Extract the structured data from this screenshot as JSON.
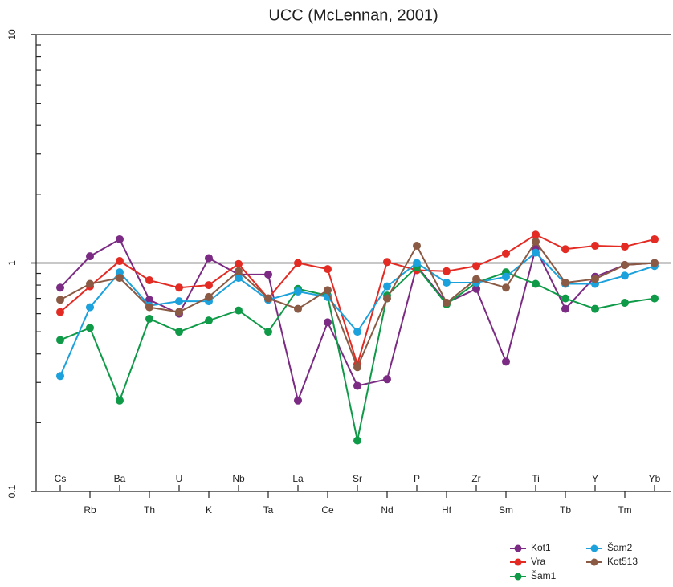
{
  "chart_data": {
    "type": "line",
    "title": "UCC (McLennan, 2001)",
    "categories": [
      "Cs",
      "Rb",
      "Ba",
      "Th",
      "U",
      "K",
      "Nb",
      "Ta",
      "La",
      "Ce",
      "Sr",
      "Nd",
      "P",
      "Hf",
      "Zr",
      "Sm",
      "Ti",
      "Tb",
      "Y",
      "Tm",
      "Yb"
    ],
    "log_scale": true,
    "ylim": [
      0.1,
      10
    ],
    "yticks": [
      0.1,
      1,
      10
    ],
    "yminorticks": [
      0.2,
      0.3,
      0.4,
      0.5,
      0.6,
      0.7,
      0.8,
      0.9,
      2,
      3,
      4,
      5,
      6,
      7,
      8,
      9
    ],
    "reference_line": 1,
    "legend": "bottom-right",
    "series": [
      {
        "name": "Kot1",
        "color": "#7b2b83",
        "values": [
          0.78,
          1.07,
          1.27,
          0.69,
          0.6,
          1.05,
          0.89,
          0.89,
          0.25,
          0.55,
          0.29,
          0.31,
          0.97,
          0.67,
          0.77,
          0.37,
          1.16,
          0.63,
          0.87,
          0.98,
          1.0
        ]
      },
      {
        "name": "Vra",
        "color": "#e32b24",
        "values": [
          0.61,
          0.79,
          1.02,
          0.84,
          0.78,
          0.8,
          0.99,
          0.7,
          1.0,
          0.94,
          0.36,
          1.01,
          0.93,
          0.92,
          0.97,
          1.1,
          1.33,
          1.15,
          1.19,
          1.18,
          1.27
        ]
      },
      {
        "name": "Šam1",
        "color": "#0f9a48",
        "values": [
          0.46,
          0.52,
          0.25,
          0.57,
          0.5,
          0.56,
          0.62,
          0.5,
          0.77,
          0.72,
          0.167,
          0.72,
          0.96,
          0.66,
          0.82,
          0.91,
          0.81,
          0.7,
          0.63,
          0.67,
          0.7
        ]
      },
      {
        "name": "Šam2",
        "color": "#1ba1dc",
        "values": [
          0.32,
          0.64,
          0.91,
          0.65,
          0.68,
          0.68,
          0.86,
          0.69,
          0.75,
          0.71,
          0.5,
          0.79,
          1.0,
          0.82,
          0.82,
          0.87,
          1.11,
          0.81,
          0.81,
          0.88,
          0.97
        ]
      },
      {
        "name": "Kot513",
        "color": "#8a5a44",
        "values": [
          0.69,
          0.81,
          0.86,
          0.64,
          0.61,
          0.71,
          0.92,
          0.7,
          0.63,
          0.76,
          0.35,
          0.7,
          1.19,
          0.67,
          0.85,
          0.78,
          1.24,
          0.82,
          0.85,
          0.98,
          1.0
        ]
      }
    ]
  }
}
